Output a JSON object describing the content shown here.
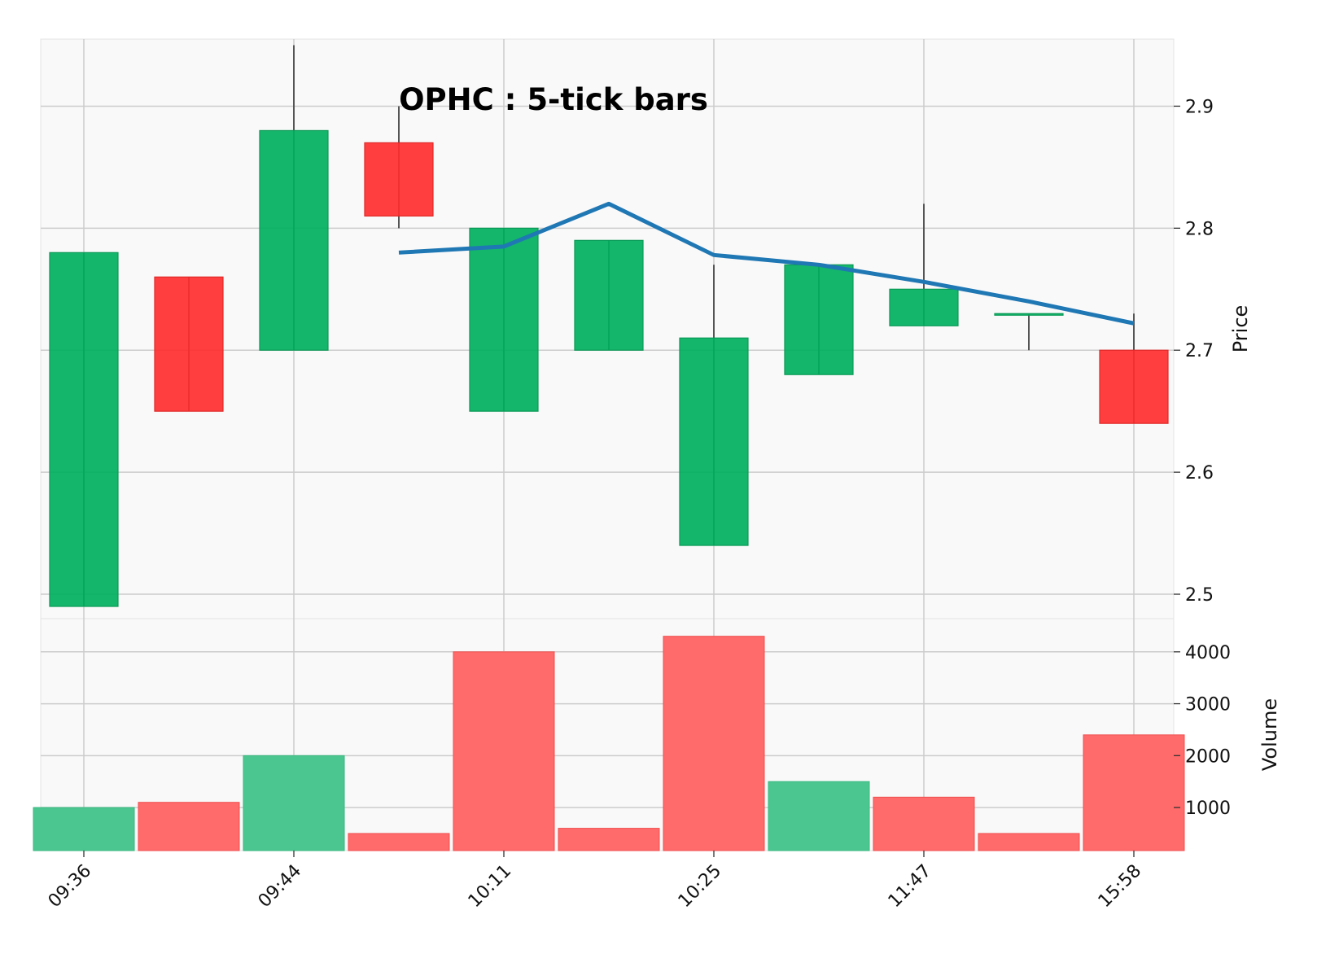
{
  "chart_data": {
    "type": "candlestick",
    "title": "OPHC : 5-tick bars",
    "x_labels": [
      "09:36",
      "",
      "09:44",
      "",
      "10:11",
      "",
      "10:25",
      "",
      "11:47",
      "",
      "15:58"
    ],
    "price": {
      "ylabel": "Price",
      "ylim": [
        2.48,
        2.955
      ],
      "yticks": [
        2.5,
        2.6,
        2.7,
        2.8,
        2.9
      ],
      "bars": [
        {
          "open": 2.49,
          "high": 2.78,
          "low": 2.49,
          "close": 2.78
        },
        {
          "open": 2.76,
          "high": 2.76,
          "low": 2.65,
          "close": 2.65
        },
        {
          "open": 2.7,
          "high": 2.95,
          "low": 2.7,
          "close": 2.88
        },
        {
          "open": 2.87,
          "high": 2.9,
          "low": 2.8,
          "close": 2.81
        },
        {
          "open": 2.65,
          "high": 2.8,
          "low": 2.65,
          "close": 2.8
        },
        {
          "open": 2.7,
          "high": 2.79,
          "low": 2.7,
          "close": 2.79
        },
        {
          "open": 2.54,
          "high": 2.77,
          "low": 2.54,
          "close": 2.71
        },
        {
          "open": 2.68,
          "high": 2.77,
          "low": 2.68,
          "close": 2.77
        },
        {
          "open": 2.72,
          "high": 2.82,
          "low": 2.72,
          "close": 2.75
        },
        {
          "open": 2.73,
          "high": 2.73,
          "low": 2.7,
          "close": 2.73
        },
        {
          "open": 2.7,
          "high": 2.73,
          "low": 2.64,
          "close": 2.64
        }
      ],
      "moving_average": [
        null,
        null,
        null,
        2.78,
        2.785,
        2.82,
        2.778,
        2.77,
        2.756,
        2.74,
        2.722
      ]
    },
    "volume": {
      "ylabel": "Volume",
      "ylim": [
        170,
        4640
      ],
      "yticks": [
        1000,
        2000,
        3000,
        4000
      ],
      "values": [
        1000,
        1100,
        2000,
        500,
        4000,
        600,
        4300,
        1500,
        1200,
        500,
        2400
      ],
      "direction": [
        "up",
        "down",
        "up",
        "down",
        "down",
        "down",
        "down",
        "up",
        "down",
        "down",
        "down"
      ]
    },
    "grid": true,
    "colors": {
      "up": "#00b060",
      "down": "#ff2f2f",
      "volume_up": "#4cc690",
      "volume_down": "#ff6a6a",
      "moving_average": "#1f77b4",
      "grid": "#cccccc",
      "plot_bg": "#f9f9f9",
      "wick": "#555555"
    }
  }
}
